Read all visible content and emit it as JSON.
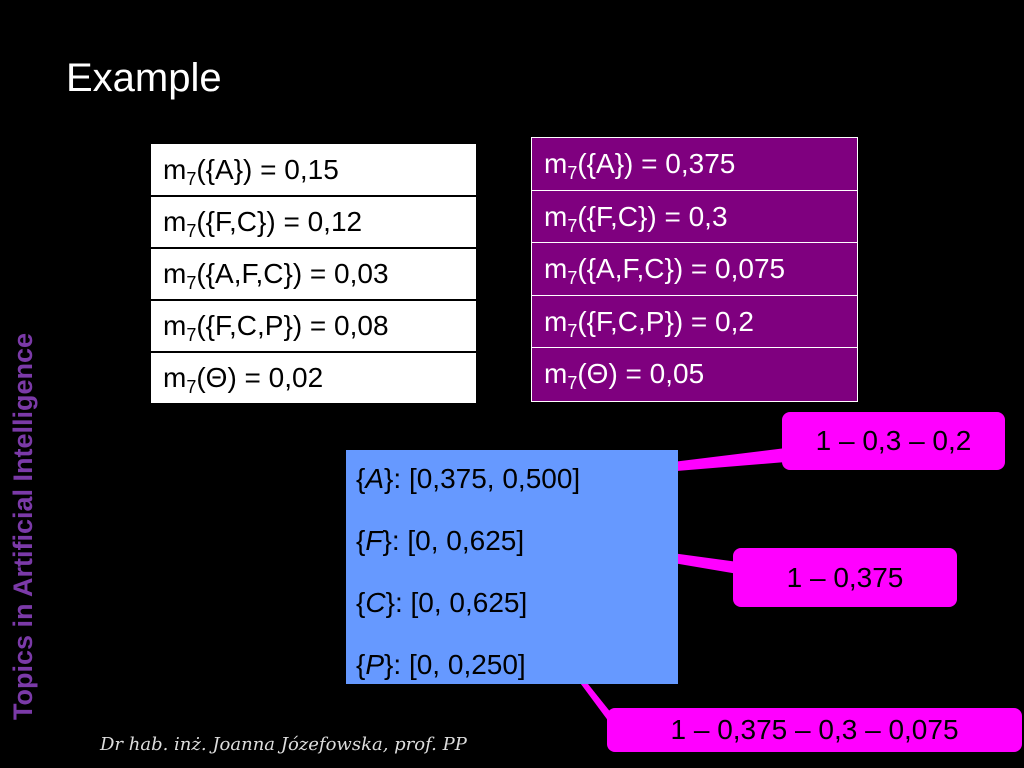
{
  "title": "Example",
  "sidebar": "Topics in Artificial Intelligence",
  "footer": "Dr hab. inż. Joanna Józefowska, prof. PP",
  "left_table": {
    "rows": [
      {
        "m": "m",
        "sub": "7",
        "text": "({A}) = 0,15"
      },
      {
        "m": "m",
        "sub": "7",
        "text": "({F,C}) = 0,12"
      },
      {
        "m": "m",
        "sub": "7",
        "text": "({A,F,C}) = 0,03"
      },
      {
        "m": "m",
        "sub": "7",
        "text": "({F,C,P}) = 0,08"
      },
      {
        "m": "m",
        "sub": "7",
        "text": "(Θ) = 0,02"
      }
    ]
  },
  "right_table": {
    "rows": [
      {
        "m": "m",
        "sub": "7",
        "text": "({A}) = 0,375"
      },
      {
        "m": "m",
        "sub": "7",
        "text": "({F,C}) = 0,3"
      },
      {
        "m": "m",
        "sub": "7",
        "text": "({A,F,C}) = 0,075"
      },
      {
        "m": "m",
        "sub": "7",
        "text": "({F,C,P}) = 0,2"
      },
      {
        "m": "m",
        "sub": "7",
        "text": "(Θ) = 0,05"
      }
    ]
  },
  "intervals": [
    {
      "open": "{",
      "var": "A",
      "text": "}: [0,375, 0,500]"
    },
    {
      "open": "{",
      "var": "F",
      "text": "}: [0, 0,625]"
    },
    {
      "open": "{",
      "var": "C",
      "text": "}: [0, 0,625]"
    },
    {
      "open": "{",
      "var": "P",
      "text": "}: [0, 0,250]"
    }
  ],
  "callouts": [
    "1 – 0,3 – 0,2",
    "1 – 0,375",
    "1 – 0,375 – 0,3 – 0,075"
  ]
}
